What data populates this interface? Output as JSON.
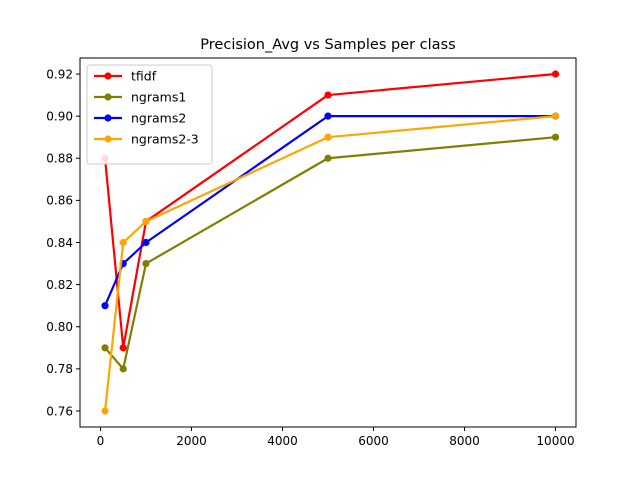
{
  "chart_data": {
    "type": "line",
    "title": "Precision_Avg vs Samples per class",
    "xlabel": "",
    "ylabel": "",
    "x": [
      100,
      500,
      1000,
      5000,
      10000
    ],
    "xlim": [
      -450,
      10450
    ],
    "ylim": [
      0.7524,
      0.9276
    ],
    "xticks": [
      0,
      2000,
      4000,
      6000,
      8000,
      10000
    ],
    "xtick_labels": [
      "0",
      "2000",
      "4000",
      "6000",
      "8000",
      "10000"
    ],
    "yticks": [
      0.76,
      0.78,
      0.8,
      0.82,
      0.84,
      0.86,
      0.88,
      0.9,
      0.92
    ],
    "ytick_labels": [
      "0.76",
      "0.78",
      "0.80",
      "0.82",
      "0.84",
      "0.86",
      "0.88",
      "0.90",
      "0.92"
    ],
    "grid": false,
    "legend_position": "top-left",
    "series": [
      {
        "name": "tfidf",
        "color": "#ff0000",
        "values": [
          0.88,
          0.79,
          0.85,
          0.91,
          0.92
        ]
      },
      {
        "name": "ngrams1",
        "color": "#808000",
        "values": [
          0.79,
          0.78,
          0.83,
          0.88,
          0.89
        ]
      },
      {
        "name": "ngrams2",
        "color": "#0000ff",
        "values": [
          0.81,
          0.83,
          0.84,
          0.9,
          0.9
        ]
      },
      {
        "name": "ngrams2-3",
        "color": "#ffa500",
        "values": [
          0.76,
          0.84,
          0.85,
          0.89,
          0.9
        ]
      }
    ]
  }
}
